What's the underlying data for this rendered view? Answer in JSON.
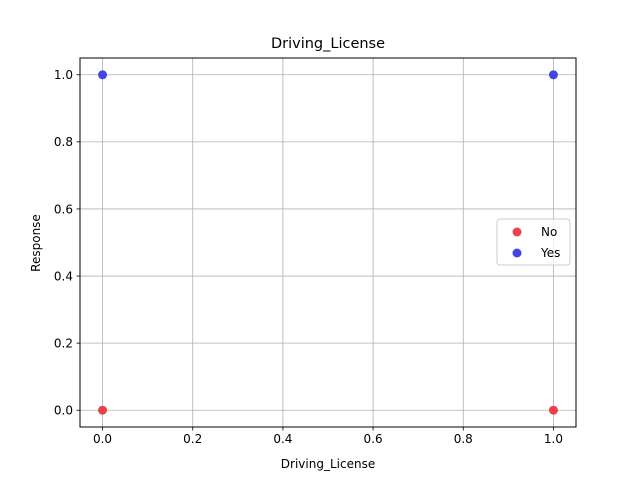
{
  "chart_data": {
    "type": "scatter",
    "title": "Driving_License",
    "xlabel": "Driving_License",
    "ylabel": "Response",
    "xlim": [
      -0.05,
      1.05
    ],
    "ylim": [
      -0.05,
      1.05
    ],
    "xticks": [
      0.0,
      0.2,
      0.4,
      0.6,
      0.8,
      1.0
    ],
    "yticks": [
      0.0,
      0.2,
      0.4,
      0.6,
      0.8,
      1.0
    ],
    "xtick_labels": [
      "0.0",
      "0.2",
      "0.4",
      "0.6",
      "0.8",
      "1.0"
    ],
    "ytick_labels": [
      "0.0",
      "0.2",
      "0.4",
      "0.6",
      "0.8",
      "1.0"
    ],
    "grid": true,
    "legend_position": "center-right",
    "series": [
      {
        "name": "No",
        "color": "#e8393f",
        "points": [
          {
            "x": 0,
            "y": 0
          },
          {
            "x": 1,
            "y": 0
          }
        ]
      },
      {
        "name": "Yes",
        "color": "#3a3ae6",
        "points": [
          {
            "x": 0,
            "y": 1
          },
          {
            "x": 1,
            "y": 1
          }
        ]
      }
    ]
  }
}
